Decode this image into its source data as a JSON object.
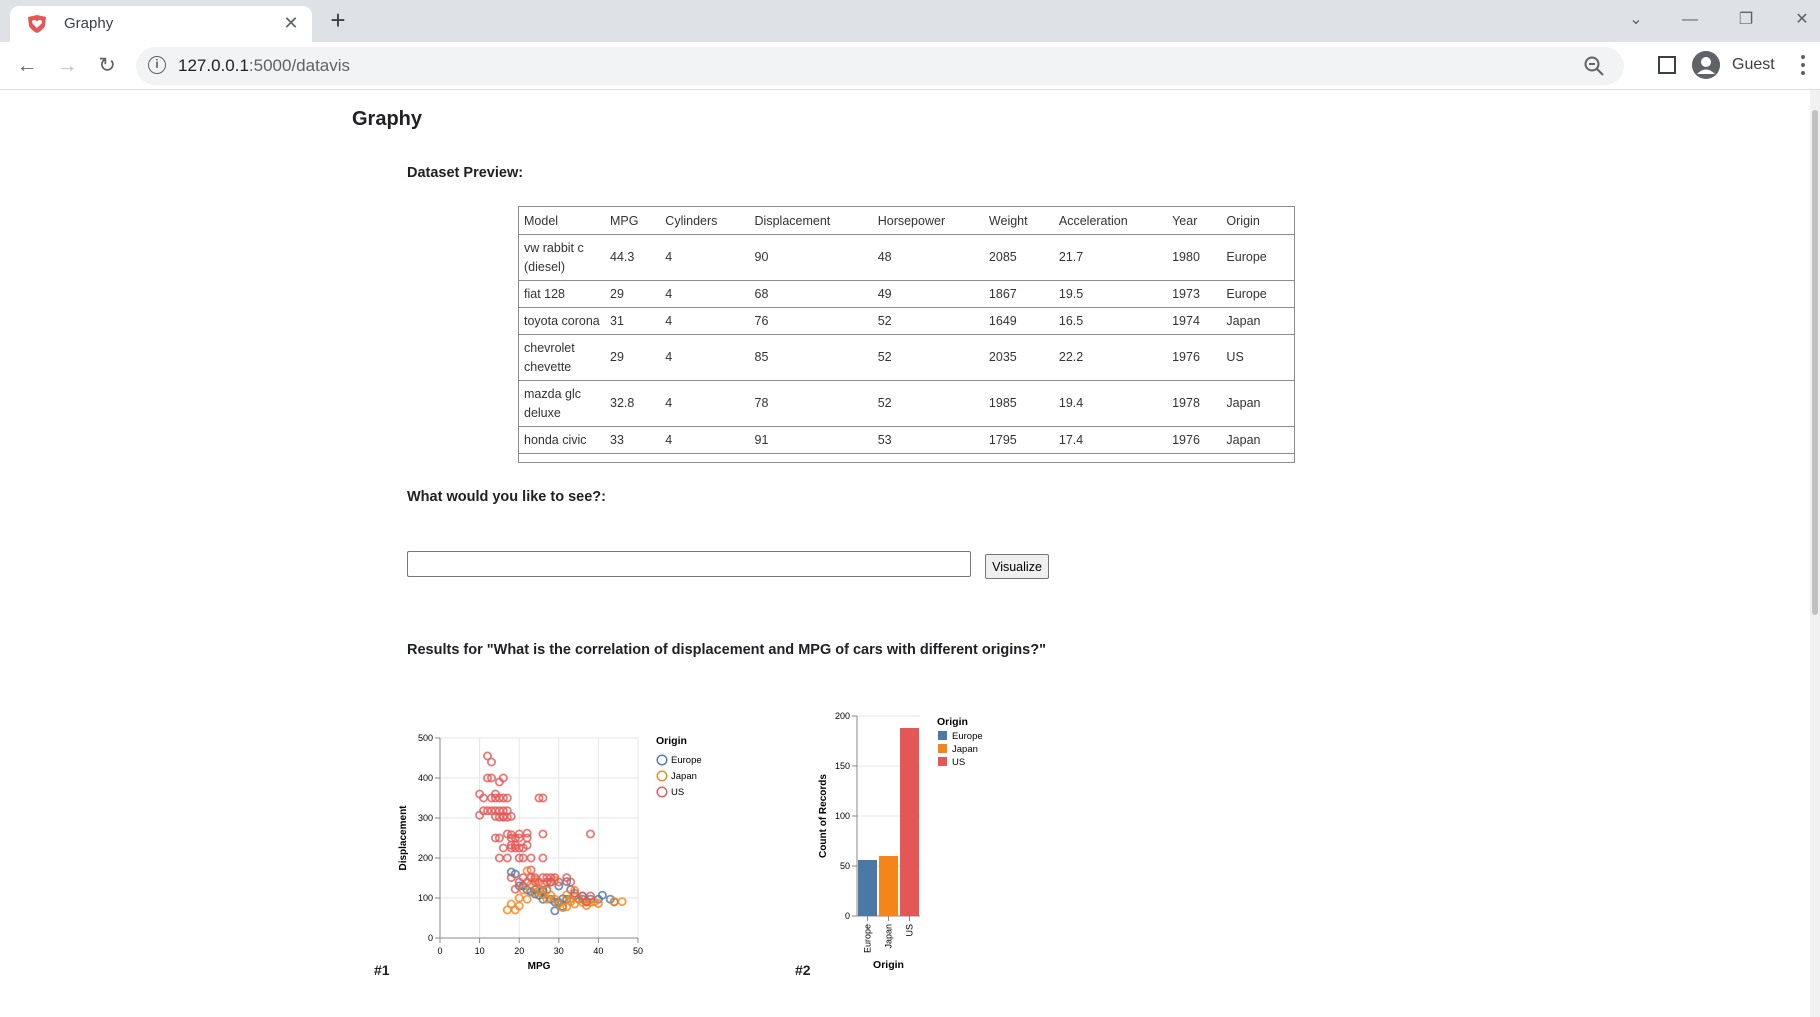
{
  "browser": {
    "tab_title": "Graphy",
    "url_host": "127.0.0.1",
    "url_path": ":5000/datavis",
    "profile_name": "Guest"
  },
  "page": {
    "title": "Graphy",
    "dataset_label": "Dataset Preview:",
    "query_label": "What would you like to see?:",
    "query_value": "",
    "visualize_label": "Visualize",
    "results_label": "Results for \"What is the correlation of displacement and MPG of cars with different origins?\""
  },
  "table": {
    "columns": [
      "Model",
      "MPG",
      "Cylinders",
      "Displacement",
      "Horsepower",
      "Weight",
      "Acceleration",
      "Year",
      "Origin"
    ],
    "rows": [
      [
        "vw rabbit c (diesel)",
        "44.3",
        "4",
        "90",
        "48",
        "2085",
        "21.7",
        "1980",
        "Europe"
      ],
      [
        "fiat 128",
        "29",
        "4",
        "68",
        "49",
        "1867",
        "19.5",
        "1973",
        "Europe"
      ],
      [
        "toyota corona",
        "31",
        "4",
        "76",
        "52",
        "1649",
        "16.5",
        "1974",
        "Japan"
      ],
      [
        "chevrolet chevette",
        "29",
        "4",
        "85",
        "52",
        "2035",
        "22.2",
        "1976",
        "US"
      ],
      [
        "mazda glc deluxe",
        "32.8",
        "4",
        "78",
        "52",
        "1985",
        "19.4",
        "1978",
        "Japan"
      ],
      [
        "honda civic",
        "33",
        "4",
        "91",
        "53",
        "1795",
        "17.4",
        "1976",
        "Japan"
      ]
    ]
  },
  "colors": {
    "Europe": "#4c78a8",
    "Japan": "#f58518",
    "US": "#e45756"
  },
  "chart_data": [
    {
      "type": "scatter",
      "number_label": "#1",
      "xlabel": "MPG",
      "ylabel": "Displacement",
      "xlim": [
        0,
        50
      ],
      "ylim": [
        0,
        500
      ],
      "xticks": [
        0,
        10,
        20,
        30,
        40,
        50
      ],
      "yticks": [
        0,
        100,
        200,
        300,
        400,
        500
      ],
      "grid": true,
      "legend_title": "Origin",
      "legend_position": "right",
      "legend": [
        "Europe",
        "Japan",
        "US"
      ],
      "series": [
        {
          "name": "Europe",
          "points": [
            [
              18,
              165
            ],
            [
              19,
              160
            ],
            [
              22,
              120
            ],
            [
              24,
              110
            ],
            [
              25,
              107
            ],
            [
              26,
              97
            ],
            [
              27,
              121
            ],
            [
              28,
              97
            ],
            [
              29,
              90
            ],
            [
              30,
              89
            ],
            [
              31,
              98
            ],
            [
              32,
              97
            ],
            [
              33,
              121
            ],
            [
              34,
              105
            ],
            [
              35,
              98
            ],
            [
              36,
              105
            ],
            [
              37,
              90
            ],
            [
              38,
              97
            ],
            [
              40,
              97
            ],
            [
              41,
              107
            ],
            [
              44,
              90
            ],
            [
              43,
              97
            ],
            [
              26,
              116
            ],
            [
              24,
              121
            ],
            [
              21,
              130
            ],
            [
              23,
              116
            ],
            [
              29,
              68
            ],
            [
              31,
              79
            ],
            [
              20,
              130
            ],
            [
              28,
              140
            ],
            [
              32,
              141
            ],
            [
              36,
              97
            ],
            [
              30,
              130
            ],
            [
              26,
              120
            ]
          ]
        },
        {
          "name": "Japan",
          "points": [
            [
              18,
              85
            ],
            [
              19,
              70
            ],
            [
              20,
              100
            ],
            [
              22,
              97
            ],
            [
              24,
              113
            ],
            [
              25,
              119
            ],
            [
              26,
              108
            ],
            [
              27,
              97
            ],
            [
              29,
              97
            ],
            [
              30,
              86
            ],
            [
              31,
              76
            ],
            [
              32,
              78
            ],
            [
              33,
              91
            ],
            [
              34,
              85
            ],
            [
              35,
              97
            ],
            [
              36,
              89
            ],
            [
              37,
              81
            ],
            [
              38,
              89
            ],
            [
              39,
              91
            ],
            [
              40,
              86
            ],
            [
              44,
              91
            ],
            [
              46,
              91
            ],
            [
              27,
              119
            ],
            [
              29,
              144
            ],
            [
              24,
              146
            ],
            [
              22,
              168
            ],
            [
              21,
              120
            ],
            [
              23,
              134
            ],
            [
              32,
              108
            ],
            [
              33,
              98
            ],
            [
              34,
              119
            ],
            [
              28,
              107
            ],
            [
              26,
              134
            ],
            [
              17,
              70
            ],
            [
              20,
              80
            ]
          ]
        },
        {
          "name": "US",
          "points": [
            [
              10,
              360
            ],
            [
              10,
              307
            ],
            [
              11,
              318
            ],
            [
              11,
              350
            ],
            [
              12,
              400
            ],
            [
              12,
              455
            ],
            [
              13,
              350
            ],
            [
              13,
              440
            ],
            [
              13,
              400
            ],
            [
              14,
              350
            ],
            [
              14,
              318
            ],
            [
              14,
              304
            ],
            [
              14,
              360
            ],
            [
              15,
              350
            ],
            [
              15,
              318
            ],
            [
              15,
              302
            ],
            [
              15,
              390
            ],
            [
              16,
              302
            ],
            [
              16,
              304
            ],
            [
              16,
              318
            ],
            [
              16,
              350
            ],
            [
              16,
              400
            ],
            [
              17,
              302
            ],
            [
              17,
              318
            ],
            [
              17,
              350
            ],
            [
              13,
              318
            ],
            [
              12,
              318
            ],
            [
              18,
              304
            ],
            [
              18,
              250
            ],
            [
              18,
              232
            ],
            [
              18,
              225
            ],
            [
              19,
              225
            ],
            [
              19,
              250
            ],
            [
              19,
              232
            ],
            [
              20,
              225
            ],
            [
              20,
              250
            ],
            [
              20,
              200
            ],
            [
              21,
              225
            ],
            [
              21,
              200
            ],
            [
              22,
              232
            ],
            [
              22,
              250
            ],
            [
              23,
              200
            ],
            [
              24,
              140
            ],
            [
              25,
              140
            ],
            [
              26,
              151
            ],
            [
              27,
              151
            ],
            [
              28,
              140
            ],
            [
              29,
              151
            ],
            [
              30,
              140
            ],
            [
              23,
              151
            ],
            [
              22,
              140
            ],
            [
              21,
              151
            ],
            [
              18,
              151
            ],
            [
              19,
              122
            ],
            [
              20,
              140
            ],
            [
              24,
              151
            ],
            [
              26,
              200
            ],
            [
              28,
              151
            ],
            [
              32,
              151
            ],
            [
              33,
              140
            ],
            [
              34,
              112
            ],
            [
              37,
              91
            ],
            [
              38,
              105
            ],
            [
              36,
              105
            ],
            [
              27,
              140
            ],
            [
              23,
              170
            ],
            [
              17,
              260
            ],
            [
              26,
              260
            ],
            [
              38,
              260
            ],
            [
              18,
              258
            ],
            [
              22,
              262
            ],
            [
              17,
              200
            ],
            [
              15,
              250
            ],
            [
              20,
              260
            ],
            [
              25,
              350
            ],
            [
              26,
              350
            ],
            [
              15,
              200
            ],
            [
              14,
              250
            ],
            [
              16,
              225
            ]
          ]
        }
      ]
    },
    {
      "type": "bar",
      "number_label": "#2",
      "categories": [
        "Europe",
        "Japan",
        "US"
      ],
      "values": [
        56,
        60,
        188
      ],
      "xlabel": "Origin",
      "ylabel": "Count of Records",
      "ylim": [
        0,
        200
      ],
      "yticks": [
        0,
        50,
        100,
        150,
        200
      ],
      "grid": true,
      "legend_title": "Origin",
      "legend_position": "right",
      "legend": [
        "Europe",
        "Japan",
        "US"
      ]
    }
  ]
}
